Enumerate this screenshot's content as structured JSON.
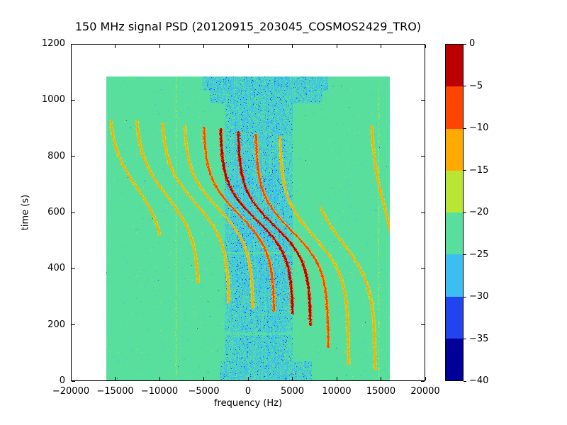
{
  "figure": {
    "title": "150 MHz signal PSD (20120915_203045_COSMOS2429_TRO)"
  },
  "chart_data": {
    "type": "heatmap",
    "title": "150 MHz signal PSD (20120915_203045_COSMOS2429_TRO)",
    "xlabel": "frequency (Hz)",
    "ylabel": "time (s)",
    "xlim": [
      -20000,
      20000
    ],
    "ylim": [
      0,
      1200
    ],
    "xticks": {
      "values": [
        -20000,
        -15000,
        -10000,
        -5000,
        0,
        5000,
        10000,
        15000,
        20000
      ],
      "labels": [
        "−20000",
        "−15000",
        "−10000",
        "−5000",
        "0",
        "5000",
        "10000",
        "15000",
        "20000"
      ]
    },
    "yticks": {
      "values": [
        0,
        200,
        400,
        600,
        800,
        1000,
        1200
      ],
      "labels": [
        "0",
        "200",
        "400",
        "600",
        "800",
        "1000",
        "1200"
      ]
    },
    "colorbar": {
      "vmin": -40,
      "vmax": 0,
      "n_levels": 8,
      "tick_values": [
        0,
        -5,
        -10,
        -15,
        -20,
        -25,
        -30,
        -35,
        -40
      ],
      "tick_labels": [
        "0",
        "−5",
        "−10",
        "−15",
        "−20",
        "−25",
        "−30",
        "−35",
        "−40"
      ],
      "colors_bottom_to_top": [
        "#000099",
        "#2244ee",
        "#3dbef0",
        "#58df9e",
        "#b8e633",
        "#ffaa00",
        "#ff4400",
        "#bb0000"
      ]
    },
    "data_extent": {
      "freq": [
        -16000,
        16000
      ],
      "time": [
        0,
        1085
      ]
    },
    "background_level_db": -22,
    "noise_band": {
      "freq_range": [
        -2600,
        5000
      ],
      "core_freq_range": [
        -1600,
        4300
      ],
      "level_db": -27,
      "dense_time_range": [
        330,
        730
      ],
      "top_blob": {
        "time_range": [
          990,
          1085
        ],
        "freq_range": [
          -4200,
          8400
        ]
      },
      "wide_top_blob": {
        "time_range": [
          1035,
          1085
        ],
        "freq_range": [
          -5200,
          9000
        ]
      },
      "bottom_blob": {
        "time_range": [
          0,
          70
        ],
        "freq_range": [
          -3200,
          7200
        ]
      },
      "gap_lines_time": [
        170,
        455
      ]
    },
    "vertical_lines": [
      {
        "freq": -8200,
        "level_db": -17
      },
      {
        "freq": 14700,
        "level_db": -17
      }
    ],
    "doppler_traces": [
      {
        "f_center": -12600,
        "amplitude": 3200,
        "t_mid": 690,
        "tau": 150,
        "level_db": -14,
        "t_range": [
          520,
          930
        ]
      },
      {
        "f_center": -9200,
        "amplitude": 3600,
        "t_mid": 660,
        "tau": 150,
        "level_db": -15,
        "t_range": [
          350,
          930
        ]
      },
      {
        "f_center": -6000,
        "amplitude": 3800,
        "t_mid": 635,
        "tau": 140,
        "level_db": -13,
        "t_range": [
          280,
          920
        ]
      },
      {
        "f_center": -3400,
        "amplitude": 3900,
        "t_mid": 615,
        "tau": 135,
        "level_db": -12,
        "t_range": [
          260,
          910
        ]
      },
      {
        "f_center": -1100,
        "amplitude": 4000,
        "t_mid": 595,
        "tau": 130,
        "level_db": -9,
        "t_range": [
          250,
          905
        ]
      },
      {
        "f_center": 900,
        "amplitude": 4100,
        "t_mid": 575,
        "tau": 128,
        "level_db": -4,
        "t_range": [
          240,
          900
        ]
      },
      {
        "f_center": 2900,
        "amplitude": 4100,
        "t_mid": 555,
        "tau": 128,
        "level_db": -3,
        "t_range": [
          200,
          890
        ]
      },
      {
        "f_center": 4900,
        "amplitude": 4100,
        "t_mid": 535,
        "tau": 132,
        "level_db": -8,
        "t_range": [
          120,
          880
        ]
      },
      {
        "f_center": 7400,
        "amplitude": 3900,
        "t_mid": 515,
        "tau": 142,
        "level_db": -12,
        "t_range": [
          60,
          870
        ]
      },
      {
        "f_center": 10600,
        "amplitude": 3700,
        "t_mid": 495,
        "tau": 155,
        "level_db": -14,
        "t_range": [
          40,
          620
        ]
      },
      {
        "f_center": 15200,
        "amplitude": 1400,
        "t_mid": 640,
        "tau": 170,
        "level_db": -14,
        "t_range": [
          480,
          910
        ]
      }
    ]
  }
}
